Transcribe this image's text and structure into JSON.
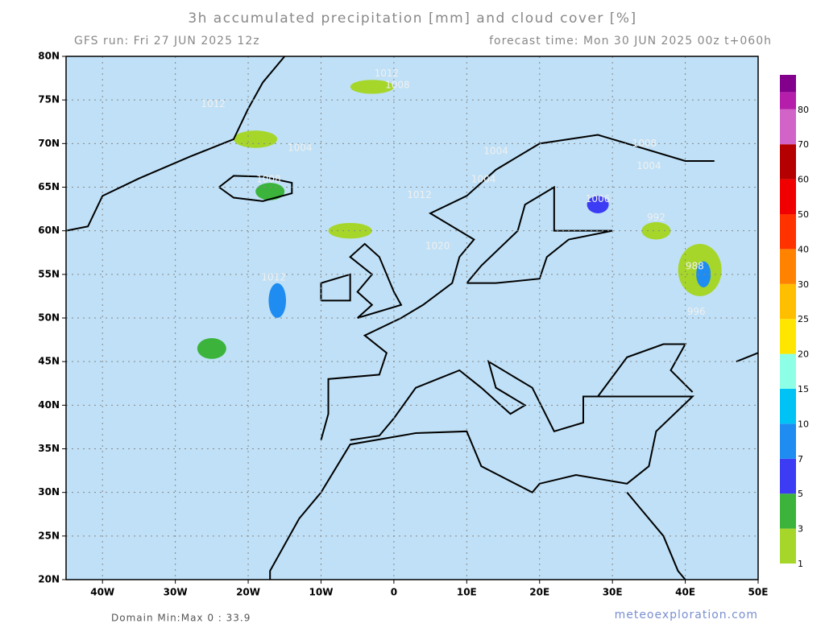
{
  "map": {
    "title": "3h accumulated precipitation [mm] and cloud cover [%]",
    "run": "GFS run: Fri 27 JUN 2025 12z",
    "forecast": "forecast time: Mon 30 JUN 2025 00z  t+060h",
    "lonlim": [
      -45,
      50
    ],
    "latlim": [
      20,
      80
    ],
    "lonticks": [
      {
        "value": -40,
        "label": "40W"
      },
      {
        "value": -30,
        "label": "30W"
      },
      {
        "value": -20,
        "label": "20W"
      },
      {
        "value": -10,
        "label": "10W"
      },
      0,
      {
        "value": 10,
        "label": "10E"
      },
      {
        "value": 20,
        "label": "20E"
      },
      {
        "value": 30,
        "label": "30E"
      },
      {
        "value": 40,
        "label": "40E"
      },
      {
        "value": 50,
        "label": "50E"
      }
    ],
    "latticks": [
      {
        "value": 20,
        "label": "20N"
      },
      {
        "value": 25,
        "label": "25N"
      },
      {
        "value": 30,
        "label": "30N"
      },
      {
        "value": 35,
        "label": "35N"
      },
      {
        "value": 40,
        "label": "40N"
      },
      {
        "value": 45,
        "label": "45N"
      },
      {
        "value": 50,
        "label": "50N"
      },
      {
        "value": 55,
        "label": "55N"
      },
      {
        "value": 60,
        "label": "60N"
      },
      {
        "value": 65,
        "label": "65N"
      },
      {
        "value": 70,
        "label": "70N"
      },
      {
        "value": 75,
        "label": "75N"
      },
      {
        "value": 80,
        "label": "80N"
      }
    ],
    "colorbar": {
      "levels": [
        1,
        3,
        5,
        7,
        10,
        15,
        20,
        25,
        30,
        40,
        50,
        60,
        70,
        80
      ],
      "colors": [
        "#a6d62a",
        "#3cb43c",
        "#3c3cf5",
        "#1e8cf0",
        "#00c3f5",
        "#8cffe6",
        "#ffe600",
        "#ffbe00",
        "#ff8200",
        "#ff3200",
        "#f00000",
        "#b40000",
        "#d264c8",
        "#b41eaa",
        "#82008c"
      ]
    },
    "isobars": [
      {
        "lon": -1,
        "lat": 78,
        "value": 1012
      },
      {
        "lon": 0.5,
        "lat": 76.7,
        "value": 1008
      },
      {
        "lon": -24.8,
        "lat": 74.5,
        "value": 1012
      },
      {
        "lon": -12.9,
        "lat": 69.5,
        "value": 1004
      },
      {
        "lon": 14,
        "lat": 69.1,
        "value": 1004
      },
      {
        "lon": 34.4,
        "lat": 70,
        "value": 1008
      },
      {
        "lon": 35,
        "lat": 67.4,
        "value": 1004
      },
      {
        "lon": -17.2,
        "lat": 65.9,
        "value": 1008
      },
      {
        "lon": 12.3,
        "lat": 65.9,
        "value": 1004
      },
      {
        "lon": 3.5,
        "lat": 64.1,
        "value": 1012
      },
      {
        "lon": 28,
        "lat": 63.6,
        "value": 1006
      },
      {
        "lon": 36,
        "lat": 61.5,
        "value": 992
      },
      {
        "lon": 6,
        "lat": 58.2,
        "value": 1020
      },
      {
        "lon": 41.3,
        "lat": 55.9,
        "value": 988
      },
      {
        "lon": 41.5,
        "lat": 50.7,
        "value": 996
      },
      {
        "lon": -16.5,
        "lat": 54.6,
        "value": 1012
      }
    ],
    "domain": "Domain Min:Max 0 : 33.9",
    "credit": "meteoexploration.com"
  }
}
